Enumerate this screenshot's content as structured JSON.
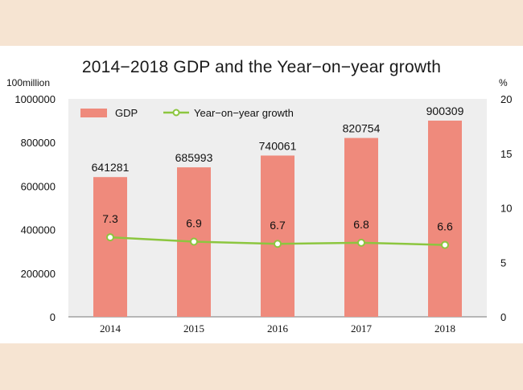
{
  "chart_data": {
    "type": "bar+line",
    "title": "2014−2018 GDP and the Year−on−year growth",
    "left_unit": "100million",
    "right_unit": "%",
    "categories": [
      "2014",
      "2015",
      "2016",
      "2017",
      "2018"
    ],
    "series": [
      {
        "name": "GDP",
        "type": "bar",
        "axis": "left",
        "color": "#ef8a7c",
        "values": [
          641281,
          685993,
          740061,
          820754,
          900309
        ]
      },
      {
        "name": "Year−on−year growth",
        "type": "line",
        "axis": "right",
        "color": "#8cc63f",
        "values": [
          7.3,
          6.9,
          6.7,
          6.8,
          6.6
        ]
      }
    ],
    "left_axis": {
      "min": 0,
      "max": 1000000,
      "ticks": [
        0,
        200000,
        400000,
        600000,
        800000,
        1000000
      ]
    },
    "right_axis": {
      "min": 0,
      "max": 20,
      "ticks": [
        0,
        5,
        10,
        15,
        20
      ]
    },
    "legend": [
      "GDP",
      "Year−on−year growth"
    ]
  }
}
